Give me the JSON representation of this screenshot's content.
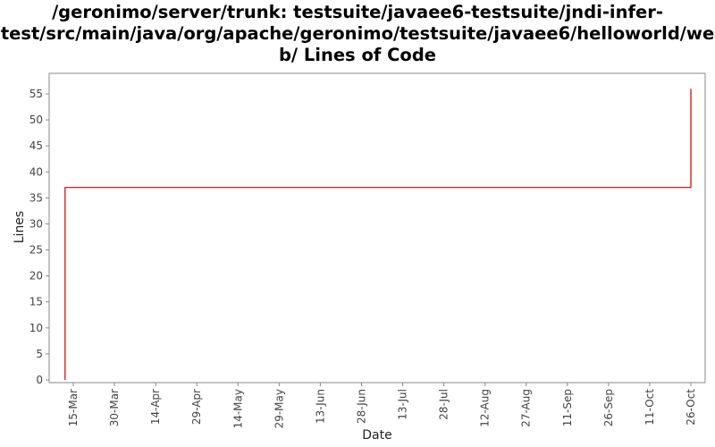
{
  "chart_data": {
    "type": "line",
    "title_lines": [
      "/geronimo/server/trunk: testsuite/javaee6-testsuite/jndi-infer-",
      "test/src/main/java/org/apache/geronimo/testsuite/javaee6/helloworld/we",
      "b/ Lines of Code"
    ],
    "xlabel": "Date",
    "ylabel": "Lines",
    "x_ticks": [
      "15-Mar",
      "30-Mar",
      "14-Apr",
      "29-Apr",
      "14-May",
      "29-May",
      "13-Jun",
      "28-Jun",
      "13-Jul",
      "28-Jul",
      "12-Aug",
      "27-Aug",
      "11-Sep",
      "26-Sep",
      "11-Oct",
      "26-Oct"
    ],
    "y_ticks": [
      0,
      5,
      10,
      15,
      20,
      25,
      30,
      35,
      40,
      45,
      50,
      55
    ],
    "ylim": [
      0,
      58
    ],
    "grid": false,
    "legend": "none",
    "series_color": "#cc0000",
    "series": [
      {
        "points": [
          {
            "x": "12-Mar",
            "y": 0
          },
          {
            "x": "12-Mar",
            "y": 37
          },
          {
            "x": "26-Oct",
            "y": 37
          },
          {
            "x": "26-Oct",
            "y": 56
          }
        ]
      }
    ]
  }
}
